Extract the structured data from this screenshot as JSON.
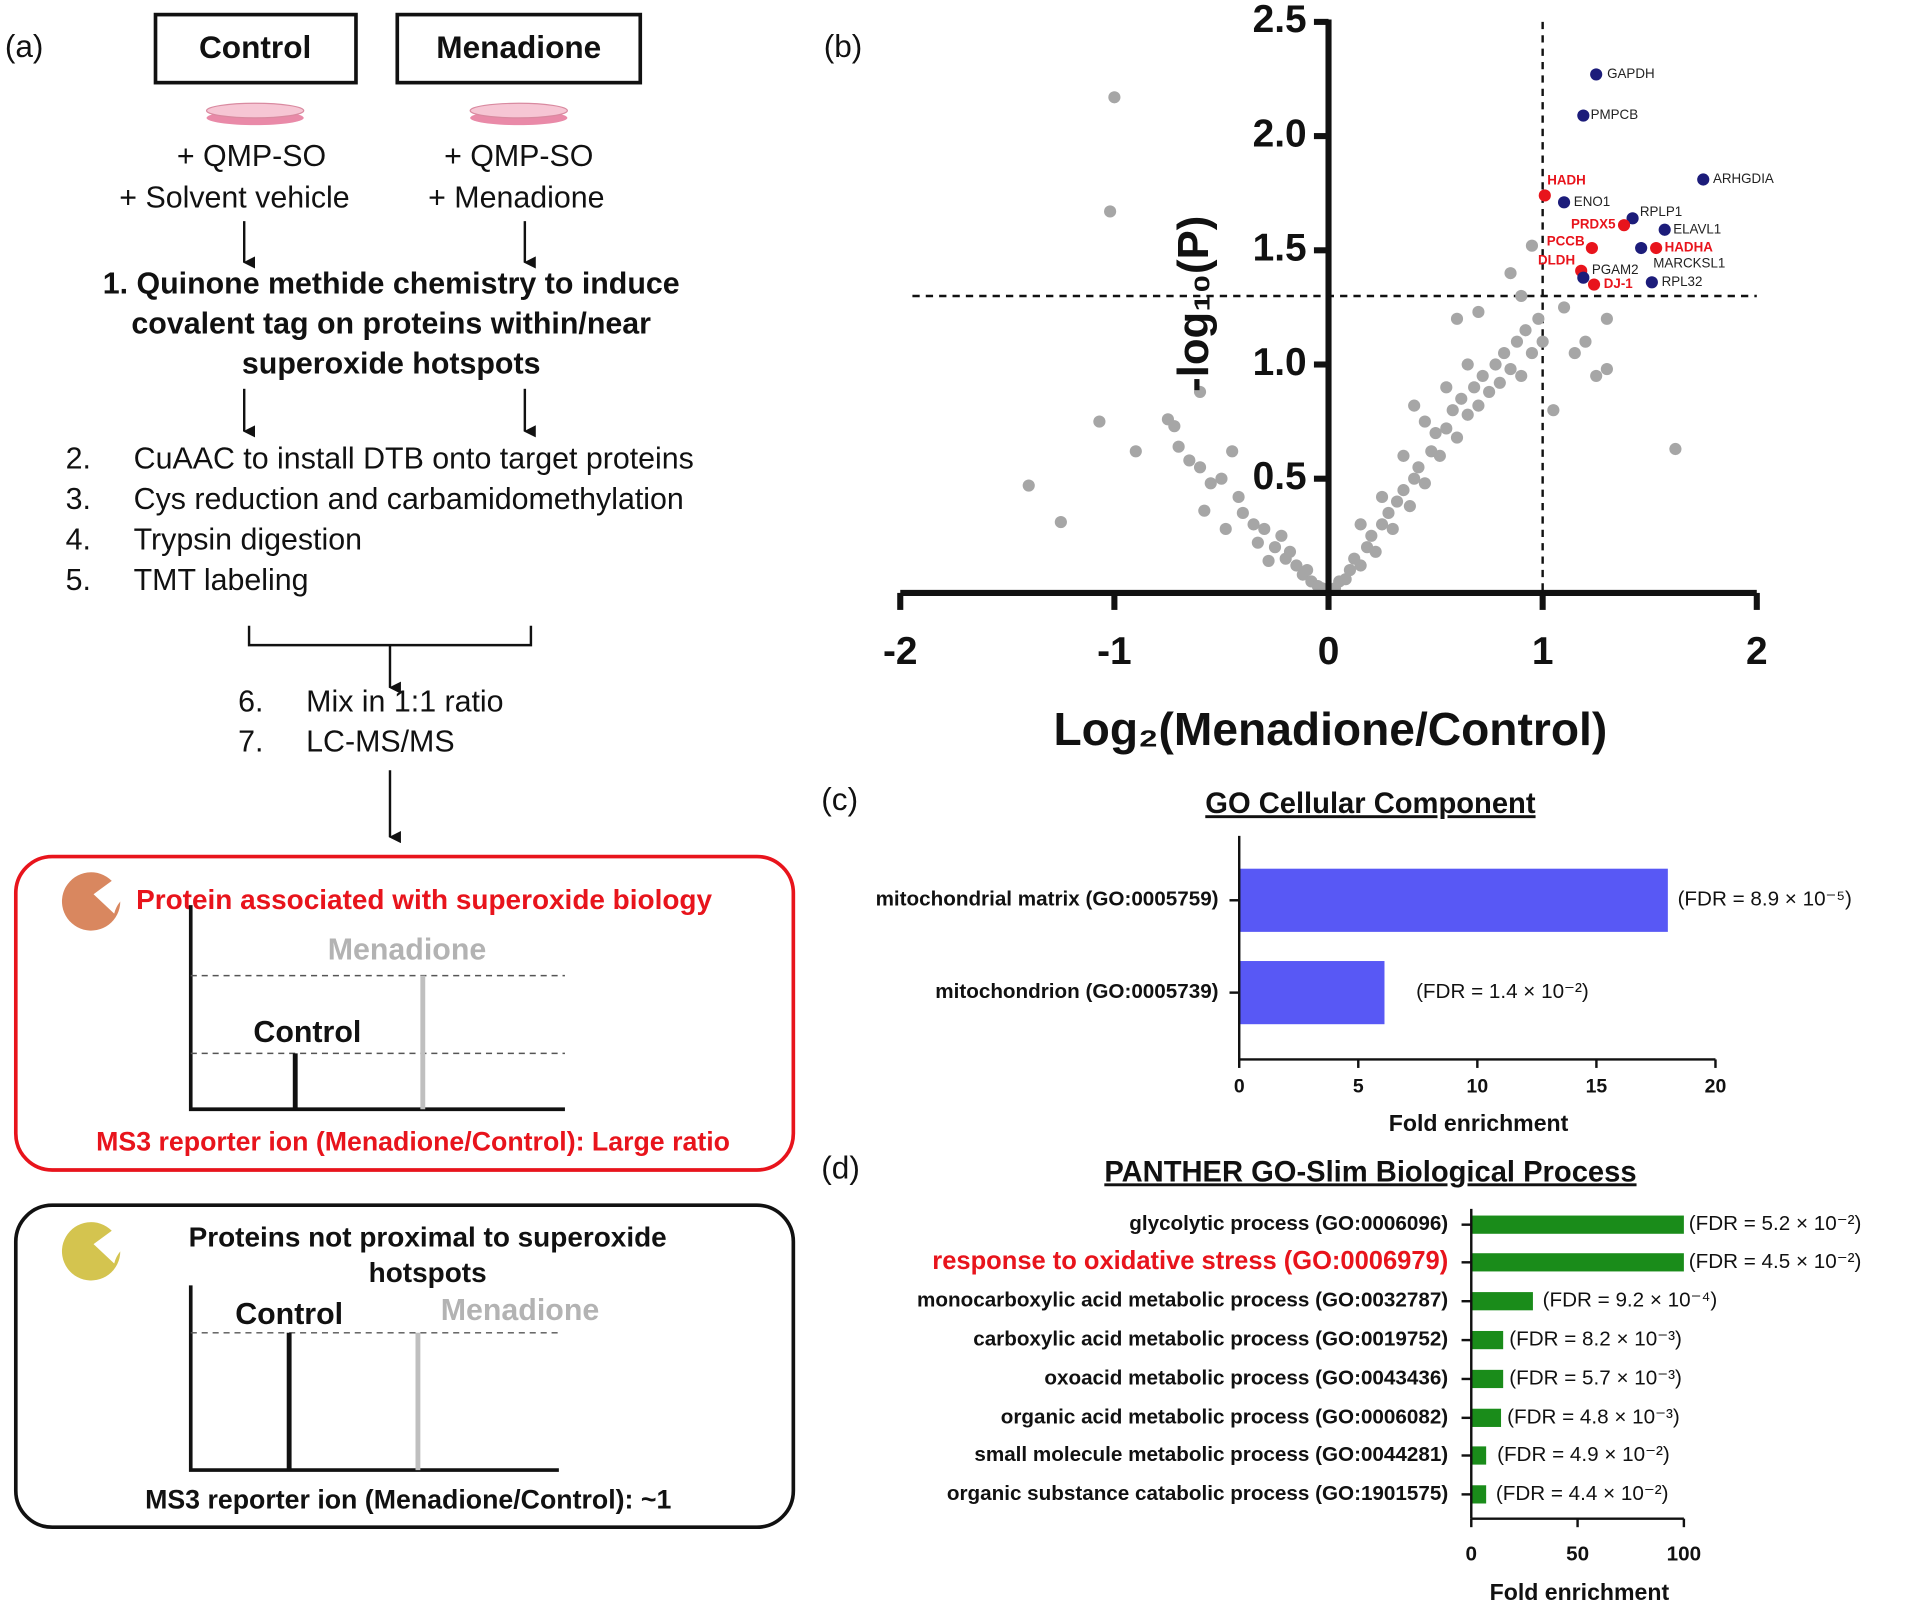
{
  "panel_a": {
    "label": "(a)",
    "group_control": "Control",
    "group_menadione": "Menadione",
    "control_treatment": [
      "+ QMP-SO",
      "+ Solvent vehicle"
    ],
    "menadione_treatment": [
      "+ QMP-SO",
      "+ Menadione"
    ],
    "step1": [
      "1. Quinone methide chemistry to induce",
      "covalent tag on proteins within/near",
      "superoxide hotspots"
    ],
    "steps": [
      {
        "num": "2.",
        "text": "CuAAC to install DTB onto target proteins"
      },
      {
        "num": "3.",
        "text": "Cys reduction and carbamidomethylation"
      },
      {
        "num": "4.",
        "text": "Trypsin digestion"
      },
      {
        "num": "5.",
        "text": "TMT labeling"
      }
    ],
    "steps_after_mix": [
      {
        "num": "6.",
        "text": "Mix in 1:1 ratio"
      },
      {
        "num": "7.",
        "text": "LC-MS/MS"
      }
    ],
    "box_positive": {
      "title": "Protein associated with superoxide biology",
      "menadione": "Menadione",
      "control": "Control",
      "caption": "MS3 reporter ion (Menadione/Control): Large ratio"
    },
    "box_negative": {
      "title": [
        "Proteins not proximal to superoxide",
        "hotspots"
      ],
      "control": "Control",
      "menadione": "Menadione",
      "caption": "MS3 reporter ion (Menadione/Control): ~1"
    }
  },
  "chart_data": [
    {
      "type": "scatter",
      "panel": "(b)",
      "x_label": "Log₂(Menadione/Control)",
      "y_label": "-log₁₀(P)",
      "color": "#a6a6a6",
      "x": [
        -1.0,
        -1.02,
        -1.4,
        -1.25,
        -1.07,
        -0.9,
        -0.75,
        -0.72,
        -0.7,
        -0.6,
        -0.55,
        -0.5,
        -0.45,
        -0.42,
        -0.4,
        -0.35,
        -0.3,
        -0.25,
        -0.22,
        -0.2,
        -0.15,
        -0.12,
        -0.1,
        -0.08,
        -0.05,
        -0.03,
        -0.6,
        -0.58,
        -0.48,
        -0.33,
        -0.28,
        -0.18,
        -0.65,
        0.03,
        0.05,
        0.08,
        0.1,
        0.12,
        0.15,
        0.18,
        0.2,
        0.22,
        0.25,
        0.28,
        0.3,
        0.32,
        0.35,
        0.38,
        0.4,
        0.42,
        0.45,
        0.48,
        0.5,
        0.52,
        0.55,
        0.58,
        0.6,
        0.62,
        0.65,
        0.68,
        0.7,
        0.72,
        0.75,
        0.78,
        0.8,
        0.82,
        0.85,
        0.88,
        0.9,
        0.92,
        0.95,
        0.98,
        1.0,
        1.05,
        1.1,
        1.15,
        1.2,
        1.25,
        1.3,
        0.7,
        0.85,
        0.95,
        0.6,
        1.3,
        1.62,
        0.35,
        0.25,
        0.45,
        0.55,
        0.15,
        0.65,
        0.9,
        0.4
      ],
      "values": [
        2.17,
        1.67,
        0.47,
        0.31,
        0.75,
        0.62,
        0.76,
        0.73,
        0.64,
        0.55,
        0.48,
        0.5,
        0.62,
        0.42,
        0.35,
        0.3,
        0.28,
        0.2,
        0.25,
        0.15,
        0.12,
        0.08,
        0.1,
        0.05,
        0.03,
        0.02,
        0.88,
        0.36,
        0.28,
        0.22,
        0.14,
        0.18,
        0.58,
        0.02,
        0.05,
        0.06,
        0.1,
        0.15,
        0.12,
        0.2,
        0.25,
        0.18,
        0.3,
        0.35,
        0.28,
        0.4,
        0.45,
        0.38,
        0.5,
        0.55,
        0.48,
        0.62,
        0.7,
        0.6,
        0.72,
        0.8,
        0.68,
        0.85,
        0.78,
        0.9,
        0.82,
        0.95,
        0.88,
        1.0,
        0.92,
        1.05,
        0.98,
        1.1,
        0.95,
        1.15,
        1.05,
        1.2,
        1.1,
        0.8,
        1.25,
        1.05,
        1.1,
        0.95,
        1.2,
        1.23,
        1.4,
        1.52,
        1.2,
        0.98,
        0.63,
        0.6,
        0.42,
        0.75,
        0.9,
        0.3,
        1.0,
        1.3,
        0.82
      ],
      "labeled_points": [
        {
          "label": "GAPDH",
          "x": 1.25,
          "y": 2.27,
          "color": "#1c1c7a"
        },
        {
          "label": "PMPCB",
          "x": 1.19,
          "y": 2.09,
          "color": "#1c1c7a"
        },
        {
          "label": "ARHGDIA",
          "x": 1.75,
          "y": 1.81,
          "color": "#1c1c7a"
        },
        {
          "label": "HADH",
          "x": 1.01,
          "y": 1.74,
          "color": "#e8141c"
        },
        {
          "label": "ENO1",
          "x": 1.1,
          "y": 1.71,
          "color": "#1c1c7a"
        },
        {
          "label": "RPLP1",
          "x": 1.42,
          "y": 1.64,
          "color": "#1c1c7a"
        },
        {
          "label": "ELAVL1",
          "x": 1.57,
          "y": 1.59,
          "color": "#1c1c7a"
        },
        {
          "label": "PRDX5",
          "x": 1.38,
          "y": 1.61,
          "color": "#e8141c"
        },
        {
          "label": "PCCB",
          "x": 1.23,
          "y": 1.51,
          "color": "#e8141c"
        },
        {
          "label": "HADHA",
          "x": 1.53,
          "y": 1.51,
          "color": "#e8141c"
        },
        {
          "label": "MARCKSL1",
          "x": 1.46,
          "y": 1.51,
          "color": "#1c1c7a"
        },
        {
          "label": "DLDH",
          "x": 1.18,
          "y": 1.41,
          "color": "#e8141c"
        },
        {
          "label": "PGAM2",
          "x": 1.19,
          "y": 1.38,
          "color": "#1c1c7a"
        },
        {
          "label": "DJ-1",
          "x": 1.24,
          "y": 1.35,
          "color": "#e8141c"
        },
        {
          "label": "RPL32",
          "x": 1.51,
          "y": 1.36,
          "color": "#1c1c7a"
        }
      ],
      "vline": 1,
      "hline": 1.3,
      "xlim": [
        -2,
        2
      ],
      "ylim": [
        0,
        2.5
      ],
      "xticks": [
        -2,
        -1,
        0,
        1,
        2
      ],
      "yticks": [
        0.5,
        {
          "value": 1,
          "label": "1.0"
        },
        1.5,
        {
          "value": 2,
          "label": "2.0"
        },
        2.5
      ]
    },
    {
      "type": "barh",
      "panel": "(c)",
      "title": "GO Cellular Component",
      "categories": [
        "mitochondrial matrix (GO:0005759)",
        "mitochondrion (GO:0005739)"
      ],
      "values": [
        18,
        6.1
      ],
      "annotations": [
        "(FDR = 8.9 × 10⁻⁵)",
        "(FDR = 1.4 × 10⁻²)"
      ],
      "color": "#5858f5",
      "label_colors": [
        "#111111",
        "#111111"
      ],
      "x_label": "Fold enrichment",
      "xlim": [
        0,
        20
      ],
      "xticks": [
        0,
        5,
        10,
        15,
        20
      ]
    },
    {
      "type": "barh",
      "panel": "(d)",
      "title": "PANTHER GO-Slim Biological Process",
      "categories": [
        "glycolytic process (GO:0006096)",
        "response to oxidative stress (GO:0006979)",
        "monocarboxylic acid metabolic process (GO:0032787)",
        "carboxylic acid metabolic process (GO:0019752)",
        "oxoacid metabolic process (GO:0043436)",
        "organic acid metabolic process (GO:0006082)",
        "small molecule metabolic process (GO:0044281)",
        "organic substance catabolic process (GO:1901575)"
      ],
      "values": [
        100,
        100,
        29,
        15,
        15,
        14,
        7,
        7
      ],
      "annotations": [
        "(FDR = 5.2 × 10⁻²)",
        "(FDR = 4.5 × 10⁻²)",
        "(FDR = 9.2 × 10⁻⁴)",
        "(FDR = 8.2 × 10⁻³)",
        "(FDR = 5.7 × 10⁻³)",
        "(FDR = 4.8 × 10⁻³)",
        "(FDR = 4.9 × 10⁻²)",
        "(FDR = 4.4 × 10⁻²)"
      ],
      "color": "#1a8c1a",
      "label_colors": [
        "#111111",
        "#e8141c",
        "#111111",
        "#111111",
        "#111111",
        "#111111",
        "#111111",
        "#111111"
      ],
      "x_label": "Fold enrichment",
      "xlim": [
        0,
        100
      ],
      "xticks": [
        0,
        50,
        100
      ]
    }
  ]
}
